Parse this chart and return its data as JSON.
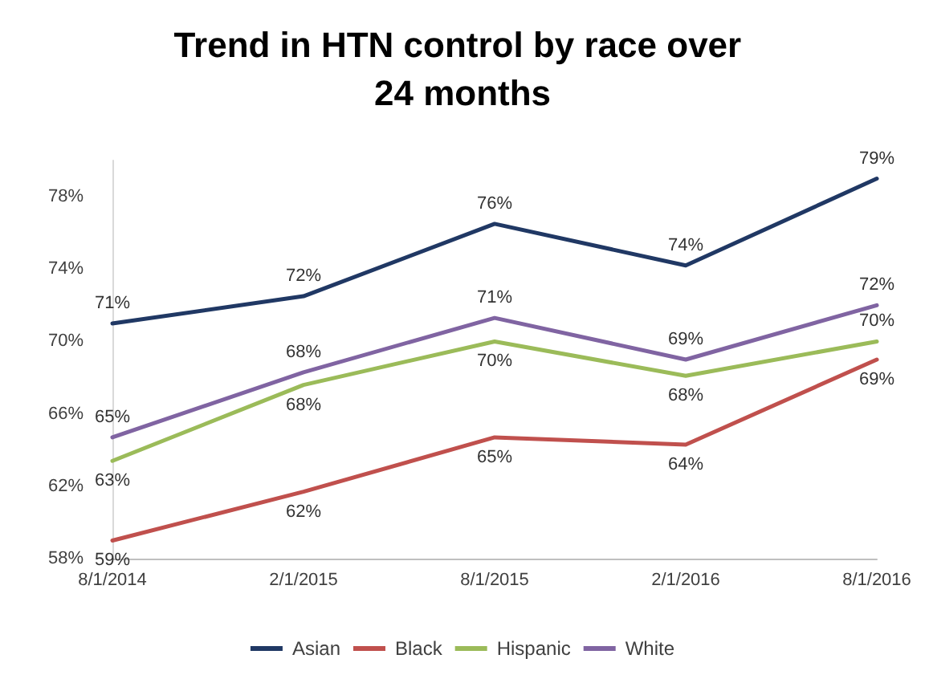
{
  "chart_data": {
    "type": "line",
    "title": "Trend in HTN control by race over 24 months",
    "categories": [
      "8/1/2014",
      "2/1/2015",
      "8/1/2015",
      "2/1/2016",
      "8/1/2016"
    ],
    "series": [
      {
        "name": "Asian",
        "color": "#203864",
        "values": [
          71,
          72.5,
          76.5,
          74.2,
          79
        ],
        "value_labels": [
          "71%",
          "72%",
          "76%",
          "74%",
          "79%"
        ]
      },
      {
        "name": "Black",
        "color": "#c0504d",
        "values": [
          59,
          61.7,
          64.7,
          64.3,
          69
        ],
        "value_labels": [
          "59%",
          "62%",
          "65%",
          "64%",
          "69%"
        ]
      },
      {
        "name": "Hispanic",
        "color": "#9bbb59",
        "values": [
          63.4,
          67.6,
          70,
          68.1,
          70
        ],
        "value_labels": [
          "63%",
          "68%",
          "70%",
          "68%",
          "70%"
        ]
      },
      {
        "name": "White",
        "color": "#8064a2",
        "values": [
          64.7,
          68.3,
          71.3,
          69,
          72
        ],
        "value_labels": [
          "65%",
          "68%",
          "71%",
          "69%",
          "72%"
        ]
      }
    ],
    "ylim": [
      58,
      80
    ],
    "yticks": [
      {
        "value": 58,
        "label": "58%"
      },
      {
        "value": 62,
        "label": "62%"
      },
      {
        "value": 66,
        "label": "66%"
      },
      {
        "value": 70,
        "label": "70%"
      },
      {
        "value": 74,
        "label": "74%"
      },
      {
        "value": 78,
        "label": "78%"
      }
    ],
    "grid": false,
    "legend": "bottom",
    "marker": "none",
    "line_style": "solid"
  }
}
